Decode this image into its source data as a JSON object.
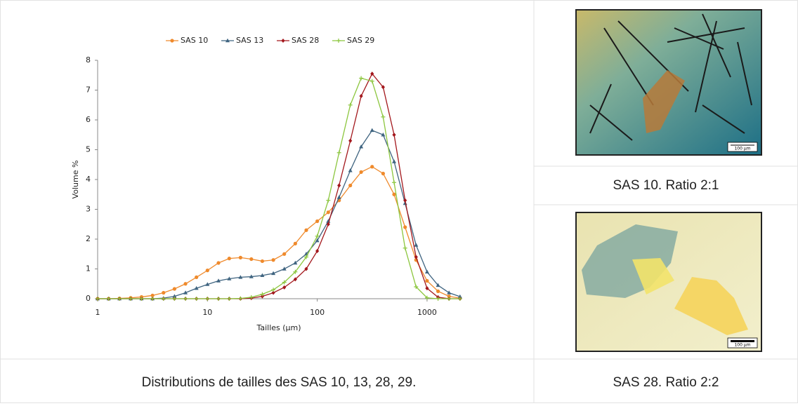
{
  "chart_data": {
    "type": "line",
    "log_x": true,
    "x_label": "Tailles (µm)",
    "y_label": "Volume %",
    "x": [
      1,
      1.26,
      1.58,
      2,
      2.51,
      3.16,
      3.98,
      5.01,
      6.31,
      7.94,
      10,
      12.6,
      15.8,
      20,
      25.1,
      31.6,
      39.8,
      50.1,
      63.1,
      79.4,
      100,
      126,
      158,
      200,
      251,
      316,
      398,
      501,
      631,
      794,
      1000,
      1259,
      1585,
      1995
    ],
    "series": [
      {
        "name": "SAS 10",
        "color": "#ef8a2c",
        "marker": "circle",
        "values": [
          0,
          0,
          0.01,
          0.03,
          0.06,
          0.11,
          0.2,
          0.33,
          0.5,
          0.72,
          0.95,
          1.2,
          1.35,
          1.38,
          1.33,
          1.26,
          1.3,
          1.5,
          1.85,
          2.3,
          2.6,
          2.9,
          3.3,
          3.8,
          4.25,
          4.43,
          4.2,
          3.5,
          2.4,
          1.3,
          0.6,
          0.25,
          0.08,
          0.02
        ]
      },
      {
        "name": "SAS 13",
        "color": "#3f6480",
        "marker": "triangle",
        "values": [
          0,
          0,
          0,
          0,
          0,
          0,
          0.02,
          0.08,
          0.2,
          0.35,
          0.48,
          0.6,
          0.67,
          0.72,
          0.74,
          0.78,
          0.85,
          1.0,
          1.2,
          1.5,
          1.95,
          2.6,
          3.4,
          4.3,
          5.1,
          5.65,
          5.5,
          4.6,
          3.2,
          1.8,
          0.9,
          0.45,
          0.2,
          0.07
        ]
      },
      {
        "name": "SAS 28",
        "color": "#a3171c",
        "marker": "diamond",
        "values": [
          0,
          0,
          0,
          0,
          0,
          0,
          0,
          0,
          0,
          0,
          0,
          0,
          0,
          0,
          0.02,
          0.08,
          0.2,
          0.38,
          0.65,
          1.0,
          1.6,
          2.5,
          3.8,
          5.3,
          6.8,
          7.55,
          7.1,
          5.5,
          3.3,
          1.4,
          0.35,
          0.05,
          0,
          0
        ]
      },
      {
        "name": "SAS 29",
        "color": "#8cc63e",
        "marker": "plus",
        "values": [
          0,
          0,
          0,
          0,
          0,
          0,
          0,
          0,
          0,
          0,
          0,
          0,
          0,
          0.01,
          0.05,
          0.15,
          0.3,
          0.55,
          0.9,
          1.4,
          2.1,
          3.3,
          4.9,
          6.5,
          7.4,
          7.3,
          6.1,
          3.9,
          1.7,
          0.4,
          0.03,
          0,
          0,
          0
        ]
      }
    ],
    "xlim": [
      1,
      2000
    ],
    "xticks": [
      1,
      10,
      100,
      1000
    ],
    "ylim": [
      0,
      8
    ],
    "yticks": [
      0,
      1,
      2,
      3,
      4,
      5,
      6,
      7,
      8
    ]
  },
  "figure_caption": "Distributions de tailles des SAS 10, 13, 28, 29.",
  "images": [
    {
      "caption": "SAS 10. Ratio 2:1",
      "scale_label": "100 µm"
    },
    {
      "caption": "SAS 28. Ratio 2:2",
      "scale_label": "100 µm"
    }
  ]
}
